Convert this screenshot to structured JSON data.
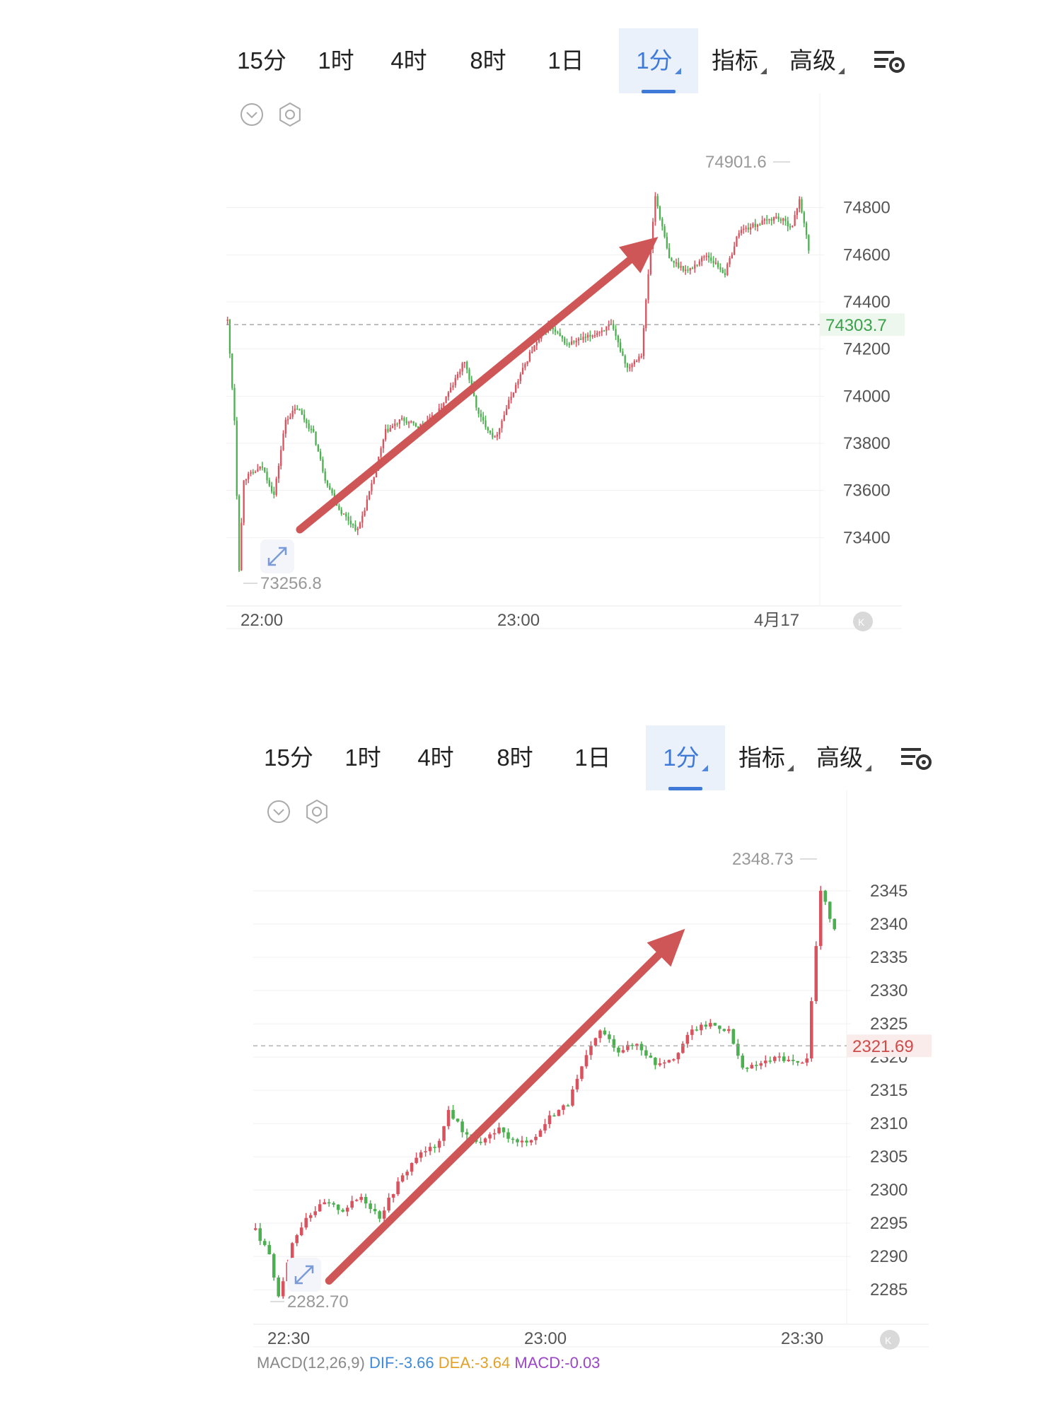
{
  "colors": {
    "up": "#d9525e",
    "down": "#4caf50",
    "arrow": "#cf5656",
    "active_tab": "#3f7ad9"
  },
  "tabs": [
    "15分",
    "1时",
    "4时",
    "8时",
    "1日",
    "1分",
    "指标",
    "高级"
  ],
  "active_tab_index": 5,
  "charts": [
    {
      "chart_data": {
        "type": "candlestick",
        "y_ticks": [
          74800,
          74600,
          74400,
          74200,
          74000,
          73800,
          73600,
          73400
        ],
        "x_ticks": [
          "22:00",
          "23:00",
          "4月17"
        ],
        "ylim": [
          73200,
          75000
        ],
        "high_label": "74901.6",
        "low_label": "73256.8",
        "last_price_label": "74303.7",
        "last_price": 74303.7,
        "trend": "up",
        "path": [
          [
            74320,
            0
          ],
          [
            73900,
            3
          ],
          [
            73270,
            5
          ],
          [
            73650,
            7
          ],
          [
            73700,
            15
          ],
          [
            73580,
            20
          ],
          [
            73900,
            25
          ],
          [
            73950,
            30
          ],
          [
            73840,
            37
          ],
          [
            73650,
            42
          ],
          [
            73520,
            48
          ],
          [
            73430,
            56
          ],
          [
            73620,
            62
          ],
          [
            73850,
            68
          ],
          [
            73900,
            75
          ],
          [
            73870,
            82
          ],
          [
            73920,
            90
          ],
          [
            74050,
            97
          ],
          [
            74150,
            102
          ],
          [
            73920,
            108
          ],
          [
            73820,
            115
          ],
          [
            74000,
            122
          ],
          [
            74180,
            130
          ],
          [
            74300,
            138
          ],
          [
            74220,
            146
          ],
          [
            74250,
            155
          ],
          [
            74300,
            165
          ],
          [
            74120,
            172
          ],
          [
            74180,
            178
          ],
          [
            74850,
            184
          ],
          [
            74580,
            190
          ],
          [
            74530,
            198
          ],
          [
            74600,
            206
          ],
          [
            74520,
            214
          ],
          [
            74700,
            220
          ],
          [
            74730,
            228
          ],
          [
            74760,
            236
          ],
          [
            74720,
            243
          ],
          [
            74840,
            246
          ],
          [
            74620,
            250
          ]
        ]
      }
    },
    {
      "chart_data": {
        "type": "candlestick",
        "y_ticks": [
          2345,
          2340,
          2335,
          2330,
          2325,
          2320,
          2315,
          2310,
          2305,
          2300,
          2295,
          2290,
          2285
        ],
        "x_ticks": [
          "22:30",
          "23:00",
          "23:30"
        ],
        "ylim": [
          2283,
          2350
        ],
        "high_label": "2348.73",
        "low_label": "2282.70",
        "last_price_label": "2321.69",
        "last_price": 2321.69,
        "trend": "up",
        "indicator_line": {
          "macd": "MACD(12,26,9)",
          "dif": "DIF:-3.66",
          "dea": "DEA:-3.64",
          "macd_val": "MACD:-0.03"
        },
        "path": [
          [
            2294,
            0
          ],
          [
            2290,
            3
          ],
          [
            2284,
            5
          ],
          [
            2292,
            8
          ],
          [
            2296,
            11
          ],
          [
            2298,
            15
          ],
          [
            2297,
            19
          ],
          [
            2299,
            23
          ],
          [
            2296,
            27
          ],
          [
            2301,
            31
          ],
          [
            2305,
            35
          ],
          [
            2307,
            40
          ],
          [
            2312,
            42
          ],
          [
            2309,
            45
          ],
          [
            2307,
            49
          ],
          [
            2309,
            53
          ],
          [
            2307,
            57
          ],
          [
            2308,
            61
          ],
          [
            2311,
            64
          ],
          [
            2313,
            68
          ],
          [
            2320,
            72
          ],
          [
            2324,
            75
          ],
          [
            2321,
            79
          ],
          [
            2322,
            83
          ],
          [
            2319,
            87
          ],
          [
            2320,
            91
          ],
          [
            2324,
            95
          ],
          [
            2325,
            99
          ],
          [
            2324,
            103
          ],
          [
            2318,
            106
          ],
          [
            2319,
            110
          ],
          [
            2320,
            114
          ],
          [
            2319,
            118
          ],
          [
            2320,
            120
          ],
          [
            2345,
            123
          ],
          [
            2339,
            126
          ]
        ]
      }
    }
  ]
}
